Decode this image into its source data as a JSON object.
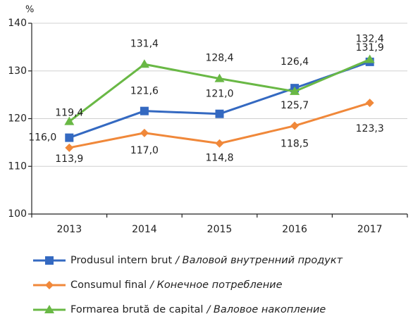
{
  "chart_data": {
    "type": "line",
    "y_unit": "%",
    "categories": [
      "2013",
      "2014",
      "2015",
      "2016",
      "2017"
    ],
    "ylim": [
      100,
      140
    ],
    "yticks": [
      100,
      110,
      120,
      130,
      140
    ],
    "grid": true,
    "legend": "bottom",
    "series": [
      {
        "name": "Produsul intern brut",
        "name_translation": "/ Валовой внутренний продукт",
        "color": "#3469c1",
        "marker": "square",
        "values": [
          116.0,
          121.6,
          121.0,
          126.4,
          131.9
        ],
        "value_labels": [
          "116,0",
          "121,6",
          "121,0",
          "126,4",
          "131,9"
        ]
      },
      {
        "name": "Consumul final",
        "name_translation": "/ Конечное потребление",
        "color": "#f0883a",
        "marker": "diamond",
        "values": [
          113.9,
          117.0,
          114.8,
          118.5,
          123.3
        ],
        "value_labels": [
          "113,9",
          "117,0",
          "114,8",
          "118,5",
          "123,3"
        ]
      },
      {
        "name": "Formarea brută de capital",
        "name_translation": "/ Валовое накопление",
        "color": "#69b845",
        "marker": "triangle",
        "values": [
          119.4,
          131.4,
          128.4,
          125.7,
          132.4
        ],
        "value_labels": [
          "119,4",
          "131,4",
          "128,4",
          "125,7",
          "132,4"
        ]
      }
    ]
  }
}
